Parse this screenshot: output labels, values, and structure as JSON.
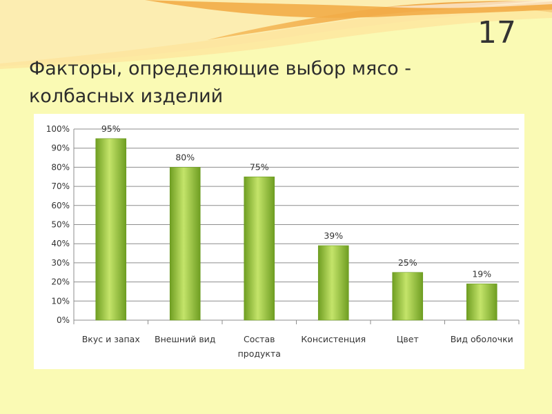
{
  "slide": {
    "number": "17",
    "title": "Факторы, определяющие выбор мясо - колбасных изделий"
  },
  "colors": {
    "background": "#fafab4",
    "bar_light": "#c4e46a",
    "bar_dark": "#6f9e22",
    "wave_orange": "#f2ac48",
    "wave_light": "#fde39a"
  },
  "chart_data": {
    "type": "bar",
    "title": "",
    "xlabel": "",
    "ylabel": "",
    "ylim": [
      0,
      100
    ],
    "ytick_step": 10,
    "ytick_suffix": "%",
    "grid": true,
    "legend": "none",
    "categories": [
      [
        "Вкус и запах"
      ],
      [
        "Внешний вид"
      ],
      [
        "Состав",
        "продукта"
      ],
      [
        "Консистенция"
      ],
      [
        "Цвет"
      ],
      [
        "Вид оболочки"
      ]
    ],
    "values": [
      95,
      80,
      75,
      39,
      25,
      19
    ],
    "data_labels": [
      "95%",
      "80%",
      "75%",
      "39%",
      "25%",
      "19%"
    ]
  }
}
